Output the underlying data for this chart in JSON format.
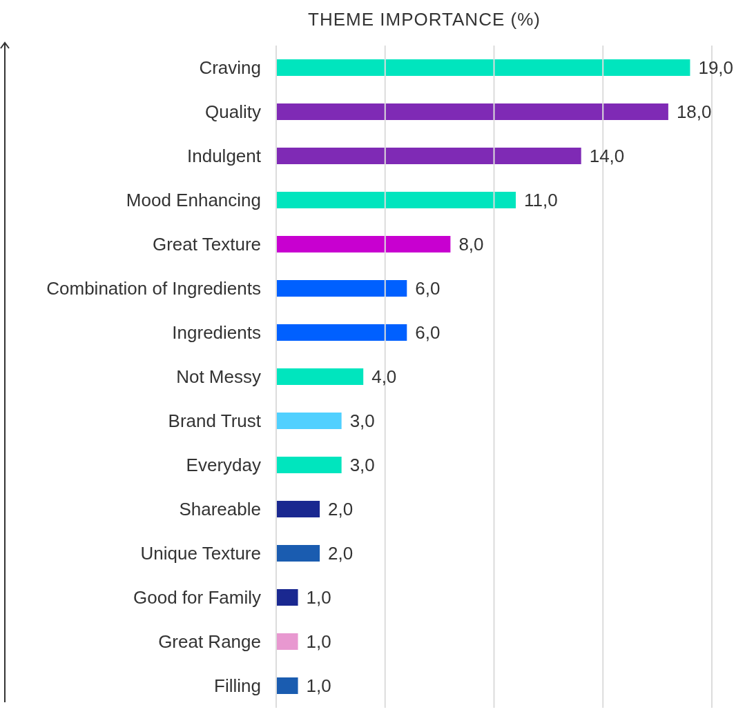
{
  "chart_data": {
    "type": "bar",
    "orientation": "horizontal",
    "title": "THEME IMPORTANCE (%)",
    "categories": [
      "Craving",
      "Quality",
      "Indulgent",
      "Mood Enhancing",
      "Great Texture",
      "Combination of Ingredients",
      "Ingredients",
      "Not Messy",
      "Brand Trust",
      "Everyday",
      "Shareable",
      "Unique Texture",
      "Good for Family",
      "Great Range",
      "Filling"
    ],
    "values": [
      19,
      18,
      14,
      11,
      8,
      6,
      6,
      4,
      3,
      3,
      2,
      2,
      1,
      1,
      1
    ],
    "value_labels": [
      "19,0",
      "18,0",
      "14,0",
      "11,0",
      "8,0",
      "6,0",
      "6,0",
      "4,0",
      "3,0",
      "3,0",
      "2,0",
      "2,0",
      "1,0",
      "1,0",
      "1,0"
    ],
    "colors": [
      "#00e5be",
      "#7f2ab5",
      "#7f2ab5",
      "#00e5be",
      "#c800d0",
      "#0060ff",
      "#0060ff",
      "#00e5be",
      "#50d0ff",
      "#00e5be",
      "#1a2890",
      "#1a5cb0",
      "#1a2890",
      "#e898d0",
      "#1a5cb0"
    ],
    "xlim": [
      0,
      20
    ],
    "xticks": [
      {
        "value": 0,
        "label": null
      },
      {
        "value": 5,
        "label": null
      },
      {
        "value": 10,
        "label": null
      },
      {
        "value": 15,
        "label": null
      },
      {
        "value": 20,
        "label": null
      }
    ],
    "grid": "x",
    "tick_labels": "y"
  }
}
